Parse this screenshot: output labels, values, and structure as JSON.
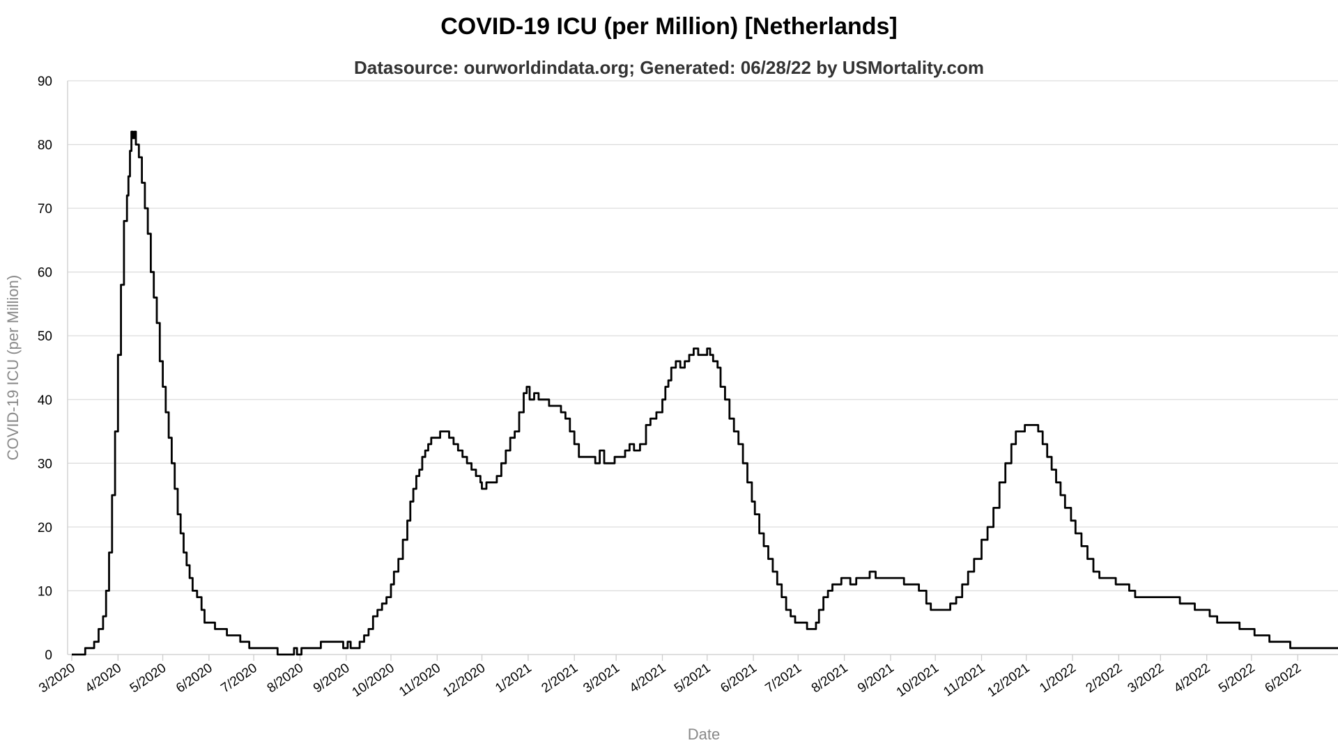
{
  "chart_data": {
    "type": "line",
    "title": "COVID-19 ICU (per Million) [Netherlands]",
    "subtitle": "Datasource: ourworldindata.org; Generated: 06/28/22 by USMortality.com",
    "xlabel": "Date",
    "ylabel": "COVID-19 ICU (per Million)",
    "ylim": [
      0,
      90
    ],
    "yticks": [
      0,
      10,
      20,
      30,
      40,
      50,
      60,
      70,
      80,
      90
    ],
    "xlim": [
      "2020-03-01",
      "2022-06-28"
    ],
    "grid": "horizontal",
    "legend": "none",
    "line_color": "#000000",
    "xtick_labels": [
      "3/2020",
      "4/2020",
      "5/2020",
      "6/2020",
      "7/2020",
      "8/2020",
      "9/2020",
      "10/2020",
      "11/2020",
      "12/2020",
      "1/2021",
      "2/2021",
      "3/2021",
      "4/2021",
      "5/2021",
      "6/2021",
      "7/2021",
      "8/2021",
      "9/2021",
      "10/2021",
      "11/2021",
      "12/2021",
      "1/2022",
      "2/2022",
      "3/2022",
      "4/2022",
      "5/2022",
      "6/2022"
    ],
    "xtick_dates": [
      "2020-03-01",
      "2020-04-01",
      "2020-05-01",
      "2020-06-01",
      "2020-07-01",
      "2020-08-01",
      "2020-09-01",
      "2020-10-01",
      "2020-11-01",
      "2020-12-01",
      "2021-01-01",
      "2021-02-01",
      "2021-03-01",
      "2021-04-01",
      "2021-05-01",
      "2021-06-01",
      "2021-07-01",
      "2021-08-01",
      "2021-09-01",
      "2021-10-01",
      "2021-11-01",
      "2021-12-01",
      "2022-01-01",
      "2022-02-01",
      "2022-03-01",
      "2022-04-01",
      "2022-05-01",
      "2022-06-01"
    ],
    "series": [
      {
        "values": [
          [
            "2020-03-01",
            0
          ],
          [
            "2020-03-08",
            0
          ],
          [
            "2020-03-10",
            1
          ],
          [
            "2020-03-13",
            1
          ],
          [
            "2020-03-16",
            2
          ],
          [
            "2020-03-19",
            4
          ],
          [
            "2020-03-22",
            6
          ],
          [
            "2020-03-24",
            10
          ],
          [
            "2020-03-26",
            16
          ],
          [
            "2020-03-28",
            25
          ],
          [
            "2020-03-30",
            35
          ],
          [
            "2020-04-01",
            47
          ],
          [
            "2020-04-03",
            58
          ],
          [
            "2020-04-05",
            68
          ],
          [
            "2020-04-07",
            72
          ],
          [
            "2020-04-08",
            75
          ],
          [
            "2020-04-09",
            79
          ],
          [
            "2020-04-10",
            82
          ],
          [
            "2020-04-11",
            81
          ],
          [
            "2020-04-12",
            82
          ],
          [
            "2020-04-13",
            80
          ],
          [
            "2020-04-15",
            78
          ],
          [
            "2020-04-17",
            74
          ],
          [
            "2020-04-19",
            70
          ],
          [
            "2020-04-21",
            66
          ],
          [
            "2020-04-23",
            60
          ],
          [
            "2020-04-25",
            56
          ],
          [
            "2020-04-27",
            52
          ],
          [
            "2020-04-29",
            46
          ],
          [
            "2020-05-01",
            42
          ],
          [
            "2020-05-03",
            38
          ],
          [
            "2020-05-05",
            34
          ],
          [
            "2020-05-07",
            30
          ],
          [
            "2020-05-09",
            26
          ],
          [
            "2020-05-11",
            22
          ],
          [
            "2020-05-13",
            19
          ],
          [
            "2020-05-15",
            16
          ],
          [
            "2020-05-17",
            14
          ],
          [
            "2020-05-19",
            12
          ],
          [
            "2020-05-21",
            10
          ],
          [
            "2020-05-24",
            9
          ],
          [
            "2020-05-27",
            7
          ],
          [
            "2020-05-29",
            5
          ],
          [
            "2020-06-03",
            5
          ],
          [
            "2020-06-05",
            4
          ],
          [
            "2020-06-10",
            4
          ],
          [
            "2020-06-13",
            3
          ],
          [
            "2020-06-20",
            3
          ],
          [
            "2020-06-22",
            2
          ],
          [
            "2020-06-25",
            2
          ],
          [
            "2020-06-28",
            1
          ],
          [
            "2020-07-10",
            1
          ],
          [
            "2020-07-15",
            1
          ],
          [
            "2020-07-17",
            0
          ],
          [
            "2020-07-26",
            0
          ],
          [
            "2020-07-28",
            1
          ],
          [
            "2020-07-30",
            0
          ],
          [
            "2020-08-02",
            1
          ],
          [
            "2020-08-12",
            1
          ],
          [
            "2020-08-15",
            2
          ],
          [
            "2020-08-24",
            2
          ],
          [
            "2020-08-28",
            2
          ],
          [
            "2020-08-30",
            1
          ],
          [
            "2020-09-02",
            2
          ],
          [
            "2020-09-04",
            1
          ],
          [
            "2020-09-07",
            1
          ],
          [
            "2020-09-10",
            2
          ],
          [
            "2020-09-13",
            3
          ],
          [
            "2020-09-16",
            4
          ],
          [
            "2020-09-19",
            6
          ],
          [
            "2020-09-22",
            7
          ],
          [
            "2020-09-25",
            8
          ],
          [
            "2020-09-28",
            9
          ],
          [
            "2020-10-01",
            11
          ],
          [
            "2020-10-03",
            13
          ],
          [
            "2020-10-06",
            15
          ],
          [
            "2020-10-09",
            18
          ],
          [
            "2020-10-12",
            21
          ],
          [
            "2020-10-14",
            24
          ],
          [
            "2020-10-16",
            26
          ],
          [
            "2020-10-18",
            28
          ],
          [
            "2020-10-20",
            29
          ],
          [
            "2020-10-22",
            31
          ],
          [
            "2020-10-24",
            32
          ],
          [
            "2020-10-26",
            33
          ],
          [
            "2020-10-28",
            34
          ],
          [
            "2020-10-31",
            34
          ],
          [
            "2020-11-03",
            35
          ],
          [
            "2020-11-06",
            35
          ],
          [
            "2020-11-09",
            34
          ],
          [
            "2020-11-12",
            33
          ],
          [
            "2020-11-15",
            32
          ],
          [
            "2020-11-18",
            31
          ],
          [
            "2020-11-21",
            30
          ],
          [
            "2020-11-24",
            29
          ],
          [
            "2020-11-27",
            28
          ],
          [
            "2020-11-30",
            27
          ],
          [
            "2020-12-01",
            26
          ],
          [
            "2020-12-04",
            27
          ],
          [
            "2020-12-08",
            27
          ],
          [
            "2020-12-11",
            28
          ],
          [
            "2020-12-14",
            30
          ],
          [
            "2020-12-17",
            32
          ],
          [
            "2020-12-20",
            34
          ],
          [
            "2020-12-23",
            35
          ],
          [
            "2020-12-26",
            38
          ],
          [
            "2020-12-29",
            41
          ],
          [
            "2020-12-31",
            42
          ],
          [
            "2021-01-02",
            40
          ],
          [
            "2021-01-05",
            41
          ],
          [
            "2021-01-08",
            40
          ],
          [
            "2021-01-12",
            40
          ],
          [
            "2021-01-15",
            39
          ],
          [
            "2021-01-20",
            39
          ],
          [
            "2021-01-23",
            38
          ],
          [
            "2021-01-26",
            37
          ],
          [
            "2021-01-29",
            35
          ],
          [
            "2021-02-01",
            33
          ],
          [
            "2021-02-04",
            31
          ],
          [
            "2021-02-08",
            31
          ],
          [
            "2021-02-12",
            31
          ],
          [
            "2021-02-15",
            30
          ],
          [
            "2021-02-18",
            32
          ],
          [
            "2021-02-21",
            30
          ],
          [
            "2021-02-24",
            30
          ],
          [
            "2021-02-28",
            31
          ],
          [
            "2021-03-04",
            31
          ],
          [
            "2021-03-07",
            32
          ],
          [
            "2021-03-10",
            33
          ],
          [
            "2021-03-13",
            32
          ],
          [
            "2021-03-17",
            33
          ],
          [
            "2021-03-21",
            36
          ],
          [
            "2021-03-24",
            37
          ],
          [
            "2021-03-28",
            38
          ],
          [
            "2021-04-01",
            40
          ],
          [
            "2021-04-03",
            42
          ],
          [
            "2021-04-05",
            43
          ],
          [
            "2021-04-07",
            45
          ],
          [
            "2021-04-10",
            46
          ],
          [
            "2021-04-13",
            45
          ],
          [
            "2021-04-16",
            46
          ],
          [
            "2021-04-19",
            47
          ],
          [
            "2021-04-22",
            48
          ],
          [
            "2021-04-25",
            47
          ],
          [
            "2021-04-28",
            47
          ],
          [
            "2021-05-01",
            48
          ],
          [
            "2021-05-03",
            47
          ],
          [
            "2021-05-05",
            46
          ],
          [
            "2021-05-08",
            45
          ],
          [
            "2021-05-10",
            42
          ],
          [
            "2021-05-13",
            40
          ],
          [
            "2021-05-16",
            37
          ],
          [
            "2021-05-19",
            35
          ],
          [
            "2021-05-22",
            33
          ],
          [
            "2021-05-25",
            30
          ],
          [
            "2021-05-28",
            27
          ],
          [
            "2021-05-31",
            24
          ],
          [
            "2021-06-02",
            22
          ],
          [
            "2021-06-05",
            19
          ],
          [
            "2021-06-08",
            17
          ],
          [
            "2021-06-11",
            15
          ],
          [
            "2021-06-14",
            13
          ],
          [
            "2021-06-17",
            11
          ],
          [
            "2021-06-20",
            9
          ],
          [
            "2021-06-23",
            7
          ],
          [
            "2021-06-26",
            6
          ],
          [
            "2021-06-29",
            5
          ],
          [
            "2021-07-01",
            5
          ],
          [
            "2021-07-04",
            5
          ],
          [
            "2021-07-07",
            4
          ],
          [
            "2021-07-10",
            4
          ],
          [
            "2021-07-13",
            5
          ],
          [
            "2021-07-15",
            7
          ],
          [
            "2021-07-18",
            9
          ],
          [
            "2021-07-21",
            10
          ],
          [
            "2021-07-24",
            11
          ],
          [
            "2021-07-27",
            11
          ],
          [
            "2021-07-30",
            12
          ],
          [
            "2021-08-03",
            12
          ],
          [
            "2021-08-05",
            11
          ],
          [
            "2021-08-09",
            12
          ],
          [
            "2021-08-13",
            12
          ],
          [
            "2021-08-18",
            13
          ],
          [
            "2021-08-22",
            12
          ],
          [
            "2021-08-27",
            12
          ],
          [
            "2021-09-01",
            12
          ],
          [
            "2021-09-05",
            12
          ],
          [
            "2021-09-10",
            11
          ],
          [
            "2021-09-15",
            11
          ],
          [
            "2021-09-20",
            10
          ],
          [
            "2021-09-25",
            8
          ],
          [
            "2021-09-28",
            7
          ],
          [
            "2021-10-03",
            7
          ],
          [
            "2021-10-07",
            7
          ],
          [
            "2021-10-11",
            8
          ],
          [
            "2021-10-15",
            9
          ],
          [
            "2021-10-19",
            11
          ],
          [
            "2021-10-23",
            13
          ],
          [
            "2021-10-27",
            15
          ],
          [
            "2021-11-01",
            18
          ],
          [
            "2021-11-05",
            20
          ],
          [
            "2021-11-09",
            23
          ],
          [
            "2021-11-13",
            27
          ],
          [
            "2021-11-17",
            30
          ],
          [
            "2021-11-21",
            33
          ],
          [
            "2021-11-24",
            35
          ],
          [
            "2021-11-27",
            35
          ],
          [
            "2021-11-30",
            36
          ],
          [
            "2021-12-03",
            36
          ],
          [
            "2021-12-06",
            36
          ],
          [
            "2021-12-09",
            35
          ],
          [
            "2021-12-12",
            33
          ],
          [
            "2021-12-15",
            31
          ],
          [
            "2021-12-18",
            29
          ],
          [
            "2021-12-21",
            27
          ],
          [
            "2021-12-24",
            25
          ],
          [
            "2021-12-27",
            23
          ],
          [
            "2021-12-31",
            21
          ],
          [
            "2022-01-03",
            19
          ],
          [
            "2022-01-07",
            17
          ],
          [
            "2022-01-11",
            15
          ],
          [
            "2022-01-15",
            13
          ],
          [
            "2022-01-19",
            12
          ],
          [
            "2022-01-23",
            12
          ],
          [
            "2022-01-27",
            12
          ],
          [
            "2022-01-30",
            11
          ],
          [
            "2022-02-03",
            11
          ],
          [
            "2022-02-08",
            10
          ],
          [
            "2022-02-12",
            9
          ],
          [
            "2022-02-17",
            9
          ],
          [
            "2022-02-22",
            9
          ],
          [
            "2022-02-27",
            9
          ],
          [
            "2022-03-04",
            9
          ],
          [
            "2022-03-09",
            9
          ],
          [
            "2022-03-14",
            8
          ],
          [
            "2022-03-19",
            8
          ],
          [
            "2022-03-24",
            7
          ],
          [
            "2022-03-29",
            7
          ],
          [
            "2022-04-03",
            6
          ],
          [
            "2022-04-08",
            5
          ],
          [
            "2022-04-13",
            5
          ],
          [
            "2022-04-18",
            5
          ],
          [
            "2022-04-23",
            4
          ],
          [
            "2022-04-28",
            4
          ],
          [
            "2022-05-03",
            3
          ],
          [
            "2022-05-08",
            3
          ],
          [
            "2022-05-13",
            2
          ],
          [
            "2022-05-18",
            2
          ],
          [
            "2022-05-23",
            2
          ],
          [
            "2022-05-27",
            1
          ],
          [
            "2022-06-01",
            1
          ],
          [
            "2022-06-03",
            1
          ],
          [
            "2022-06-10",
            1
          ],
          [
            "2022-06-20",
            1
          ],
          [
            "2022-06-28",
            1
          ]
        ]
      }
    ]
  }
}
